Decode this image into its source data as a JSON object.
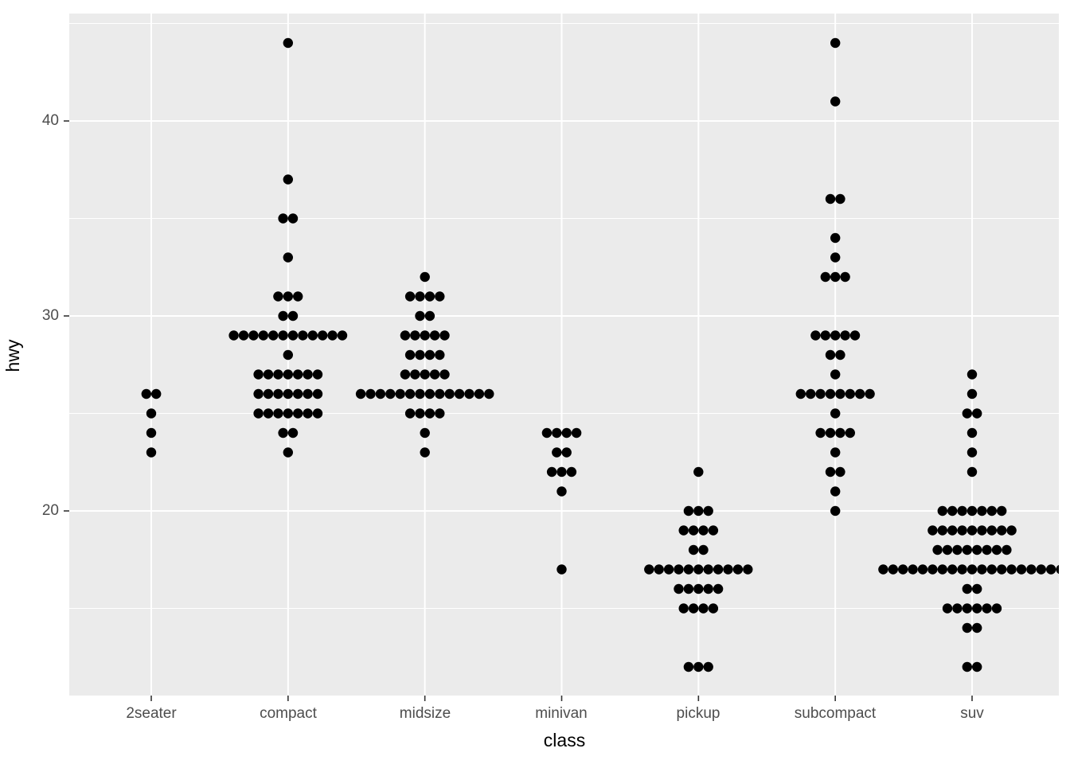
{
  "chart_data": {
    "type": "dotplot",
    "title": "",
    "xlabel": "class",
    "ylabel": "hwy",
    "categories": [
      "2seater",
      "compact",
      "midsize",
      "minivan",
      "pickup",
      "subcompact",
      "suv"
    ],
    "y_ticks": [
      20,
      30,
      40
    ],
    "y_minor_ticks": [
      15,
      25,
      35,
      45
    ],
    "ylim": [
      10.5,
      45.5
    ],
    "grid": "on",
    "legend": "none",
    "colors": {
      "panel_bg": "#EBEBEB",
      "grid_major": "#FFFFFF",
      "grid_minor": "#FFFFFF",
      "dot": "#000000",
      "axis_text": "#4D4D4D",
      "axis_title": "#000000",
      "tick_mark": "#333333"
    },
    "series": [
      {
        "name": "2seater",
        "n": 5,
        "stacks": [
          {
            "value": 26,
            "count": 2
          },
          {
            "value": 25,
            "count": 1
          },
          {
            "value": 24,
            "count": 1
          },
          {
            "value": 23,
            "count": 1
          }
        ]
      },
      {
        "name": "compact",
        "n": 47,
        "stacks": [
          {
            "value": 44,
            "count": 1
          },
          {
            "value": 37,
            "count": 1
          },
          {
            "value": 35,
            "count": 2
          },
          {
            "value": 33,
            "count": 1
          },
          {
            "value": 31,
            "count": 3
          },
          {
            "value": 30,
            "count": 2
          },
          {
            "value": 29,
            "count": 12
          },
          {
            "value": 28,
            "count": 1
          },
          {
            "value": 27,
            "count": 7
          },
          {
            "value": 26,
            "count": 7
          },
          {
            "value": 25,
            "count": 7
          },
          {
            "value": 24,
            "count": 2
          },
          {
            "value": 23,
            "count": 1
          }
        ]
      },
      {
        "name": "midsize",
        "n": 41,
        "stacks": [
          {
            "value": 32,
            "count": 1
          },
          {
            "value": 31,
            "count": 4
          },
          {
            "value": 30,
            "count": 2
          },
          {
            "value": 29,
            "count": 5
          },
          {
            "value": 28,
            "count": 4
          },
          {
            "value": 27,
            "count": 5
          },
          {
            "value": 26,
            "count": 14
          },
          {
            "value": 25,
            "count": 4
          },
          {
            "value": 24,
            "count": 1
          },
          {
            "value": 23,
            "count": 1
          }
        ]
      },
      {
        "name": "minivan",
        "n": 11,
        "stacks": [
          {
            "value": 24,
            "count": 4
          },
          {
            "value": 23,
            "count": 2
          },
          {
            "value": 22,
            "count": 3
          },
          {
            "value": 21,
            "count": 1
          },
          {
            "value": 17,
            "count": 1
          }
        ]
      },
      {
        "name": "pickup",
        "n": 33,
        "stacks": [
          {
            "value": 22,
            "count": 1
          },
          {
            "value": 20,
            "count": 3
          },
          {
            "value": 19,
            "count": 4
          },
          {
            "value": 18,
            "count": 2
          },
          {
            "value": 17,
            "count": 11
          },
          {
            "value": 16,
            "count": 5
          },
          {
            "value": 15,
            "count": 4
          },
          {
            "value": 12,
            "count": 3
          }
        ]
      },
      {
        "name": "subcompact",
        "n": 35,
        "stacks": [
          {
            "value": 44,
            "count": 1
          },
          {
            "value": 41,
            "count": 1
          },
          {
            "value": 36,
            "count": 2
          },
          {
            "value": 34,
            "count": 1
          },
          {
            "value": 33,
            "count": 1
          },
          {
            "value": 32,
            "count": 3
          },
          {
            "value": 29,
            "count": 5
          },
          {
            "value": 28,
            "count": 2
          },
          {
            "value": 27,
            "count": 1
          },
          {
            "value": 26,
            "count": 8
          },
          {
            "value": 25,
            "count": 1
          },
          {
            "value": 24,
            "count": 4
          },
          {
            "value": 23,
            "count": 1
          },
          {
            "value": 22,
            "count": 2
          },
          {
            "value": 21,
            "count": 1
          },
          {
            "value": 20,
            "count": 1
          }
        ]
      },
      {
        "name": "suv",
        "n": 62,
        "stacks": [
          {
            "value": 27,
            "count": 1
          },
          {
            "value": 26,
            "count": 1
          },
          {
            "value": 25,
            "count": 2
          },
          {
            "value": 24,
            "count": 1
          },
          {
            "value": 23,
            "count": 1
          },
          {
            "value": 22,
            "count": 1
          },
          {
            "value": 20,
            "count": 7
          },
          {
            "value": 19,
            "count": 9
          },
          {
            "value": 18,
            "count": 8
          },
          {
            "value": 17,
            "count": 19
          },
          {
            "value": 16,
            "count": 2
          },
          {
            "value": 15,
            "count": 6
          },
          {
            "value": 14,
            "count": 2
          },
          {
            "value": 12,
            "count": 2
          }
        ]
      }
    ]
  }
}
